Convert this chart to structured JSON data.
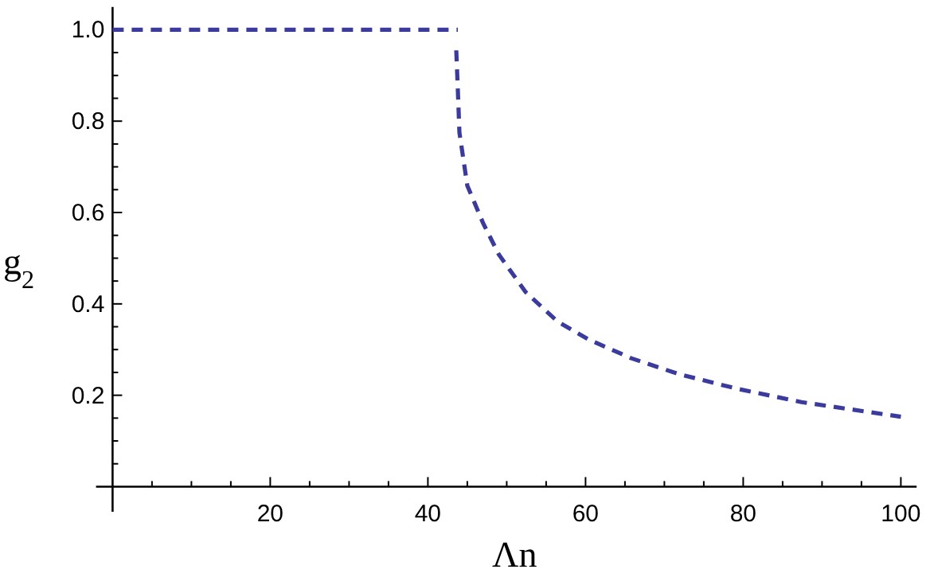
{
  "chart_data": {
    "type": "line",
    "xlabel": "Λn",
    "ylabel": "g$_{2}$",
    "xlim": [
      -2.1,
      102
    ],
    "ylim": [
      -0.055,
      1.05
    ],
    "xticks": [
      {
        "value": 5,
        "label": null
      },
      {
        "value": 10,
        "label": null
      },
      {
        "value": 15,
        "label": null
      },
      20,
      {
        "value": 25,
        "label": null
      },
      {
        "value": 30,
        "label": null
      },
      {
        "value": 35,
        "label": null
      },
      40,
      {
        "value": 45,
        "label": null
      },
      {
        "value": 50,
        "label": null
      },
      {
        "value": 55,
        "label": null
      },
      60,
      {
        "value": 65,
        "label": null
      },
      {
        "value": 70,
        "label": null
      },
      {
        "value": 75,
        "label": null
      },
      80,
      {
        "value": 85,
        "label": null
      },
      {
        "value": 90,
        "label": null
      },
      {
        "value": 95,
        "label": null
      },
      100
    ],
    "yticks": [
      {
        "value": 0.05,
        "label": null
      },
      {
        "value": 0.1,
        "label": null
      },
      {
        "value": 0.15,
        "label": null
      },
      {
        "value": 0.2,
        "label": "0.2"
      },
      {
        "value": 0.25,
        "label": null
      },
      {
        "value": 0.3,
        "label": null
      },
      {
        "value": 0.35,
        "label": null
      },
      {
        "value": 0.4,
        "label": "0.4"
      },
      {
        "value": 0.45,
        "label": null
      },
      {
        "value": 0.5,
        "label": null
      },
      {
        "value": 0.55,
        "label": null
      },
      {
        "value": 0.6,
        "label": "0.6"
      },
      {
        "value": 0.65,
        "label": null
      },
      {
        "value": 0.7,
        "label": null
      },
      {
        "value": 0.75,
        "label": null
      },
      {
        "value": 0.8,
        "label": "0.8"
      },
      {
        "value": 0.85,
        "label": null
      },
      {
        "value": 0.9,
        "label": null
      },
      {
        "value": 0.95,
        "label": null
      },
      {
        "value": 1.0,
        "label": "1.0"
      }
    ],
    "marker": "none",
    "line_style": "dashed",
    "series": [
      {
        "color": "#3b3b9e",
        "x": [
          0,
          43.8,
          43.7,
          43.6,
          43.8,
          44.0,
          45.0,
          47.0,
          49.0,
          52.4,
          56.4,
          60.4,
          65.8,
          71.9,
          79.3,
          87.4,
          100
        ],
        "values": [
          1.0,
          1.0,
          null,
          0.955,
          0.868,
          0.775,
          0.659,
          0.577,
          0.508,
          0.426,
          0.362,
          0.322,
          0.281,
          0.246,
          0.214,
          0.185,
          0.153
        ]
      }
    ]
  }
}
